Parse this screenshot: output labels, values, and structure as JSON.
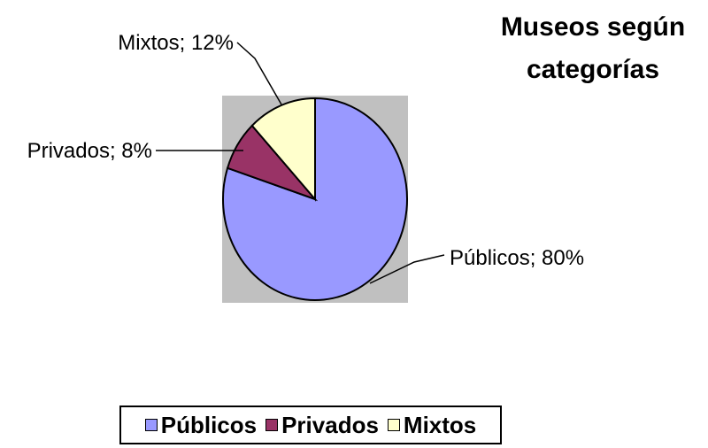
{
  "chart_data": {
    "type": "pie",
    "title_lines": [
      "Museos según",
      "categorías"
    ],
    "slices": [
      {
        "name": "Públicos",
        "value": 80,
        "label": "Públicos; 80%",
        "color": "#9999ff"
      },
      {
        "name": "Privados",
        "value": 8,
        "label": "Privados; 8%",
        "color": "#993366"
      },
      {
        "name": "Mixtos",
        "value": 12,
        "label": "Mixtos; 12%",
        "color": "#ffffcc"
      }
    ],
    "legend_position": "bottom",
    "plot_area_color": "#c0c0c0"
  }
}
